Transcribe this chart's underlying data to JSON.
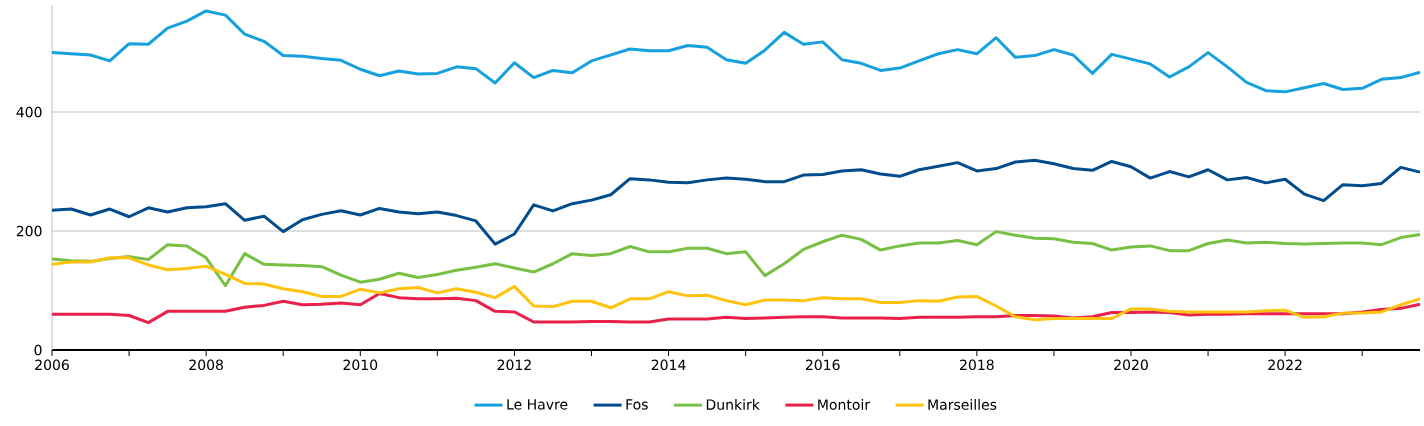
{
  "chart_data": {
    "type": "line",
    "x": [
      2006,
      2006.25,
      2006.5,
      2006.75,
      2007,
      2007.25,
      2007.5,
      2007.75,
      2008,
      2008.25,
      2008.5,
      2008.75,
      2009,
      2009.25,
      2009.5,
      2009.75,
      2010,
      2010.25,
      2010.5,
      2010.75,
      2011,
      2011.25,
      2011.5,
      2011.75,
      2012,
      2012.25,
      2012.5,
      2012.75,
      2013,
      2013.25,
      2013.5,
      2013.75,
      2014,
      2014.25,
      2014.5,
      2014.75,
      2015,
      2015.25,
      2015.5,
      2015.75,
      2016,
      2016.25,
      2016.5,
      2016.75,
      2017,
      2017.25,
      2017.5,
      2017.75,
      2018,
      2018.25,
      2018.5,
      2018.75,
      2019,
      2019.25,
      2019.5,
      2019.75,
      2020,
      2020.25,
      2020.5,
      2020.75,
      2021,
      2021.25,
      2021.5,
      2021.75,
      2022,
      2022.25,
      2022.5,
      2022.75,
      2023,
      2023.25,
      2023.5,
      2023.75
    ],
    "series": [
      {
        "name": "Le Havre",
        "color": "#16a0dc",
        "values": [
          500,
          498,
          496,
          486,
          515,
          514,
          541,
          553,
          570,
          563,
          531,
          519,
          495,
          494,
          490,
          487,
          472,
          461,
          469,
          464,
          465,
          476,
          473,
          449,
          483,
          458,
          470,
          466,
          486,
          496,
          506,
          503,
          503,
          512,
          509,
          488,
          482,
          504,
          534,
          514,
          518,
          488,
          482,
          470,
          474,
          486,
          498,
          505,
          498,
          525,
          492,
          495,
          505,
          496,
          465,
          497,
          489,
          481,
          459,
          476,
          500,
          476,
          450,
          436,
          434,
          441,
          448,
          438,
          440,
          455,
          458,
          467
        ]
      },
      {
        "name": "Fos",
        "color": "#004c8c",
        "values": [
          235,
          237,
          227,
          237,
          224,
          239,
          232,
          239,
          241,
          246,
          218,
          225,
          199,
          219,
          228,
          234,
          227,
          238,
          232,
          229,
          232,
          226,
          217,
          178,
          195,
          244,
          234,
          246,
          252,
          261,
          288,
          286,
          282,
          281,
          286,
          289,
          287,
          283,
          283,
          294,
          295,
          301,
          303,
          296,
          292,
          303,
          309,
          315,
          301,
          305,
          316,
          319,
          313,
          305,
          302,
          317,
          308,
          289,
          300,
          291,
          303,
          286,
          290,
          281,
          287,
          262,
          251,
          278,
          276,
          280,
          307,
          299
        ]
      },
      {
        "name": "Dunkirk",
        "color": "#78c043",
        "values": [
          153,
          150,
          149,
          154,
          157,
          152,
          177,
          175,
          155,
          108,
          162,
          144,
          143,
          142,
          140,
          126,
          114,
          119,
          129,
          122,
          127,
          134,
          139,
          145,
          138,
          131,
          145,
          162,
          159,
          162,
          174,
          165,
          165,
          171,
          171,
          162,
          165,
          125,
          145,
          169,
          182,
          193,
          186,
          168,
          175,
          180,
          180,
          184,
          177,
          199,
          193,
          188,
          187,
          181,
          179,
          168,
          173,
          175,
          167,
          167,
          179,
          185,
          180,
          181,
          179,
          178,
          179,
          180,
          180,
          177,
          189,
          194
        ]
      },
      {
        "name": "Montoir",
        "color": "#e8204a",
        "values": [
          60,
          60,
          60,
          60,
          58,
          46,
          65,
          65,
          65,
          65,
          72,
          75,
          82,
          76,
          77,
          79,
          76,
          95,
          88,
          86,
          86,
          87,
          83,
          65,
          64,
          47,
          47,
          47,
          48,
          48,
          47,
          47,
          52,
          52,
          52,
          55,
          53,
          54,
          55,
          56,
          56,
          54,
          54,
          54,
          53,
          55,
          55,
          55,
          56,
          56,
          58,
          58,
          57,
          54,
          56,
          63,
          63,
          64,
          63,
          59,
          60,
          60,
          61,
          61,
          61,
          61,
          61,
          61,
          64,
          68,
          70,
          77
        ]
      },
      {
        "name": "Marseilles",
        "color": "#ffc20e",
        "values": [
          144,
          148,
          148,
          155,
          155,
          143,
          135,
          137,
          141,
          127,
          112,
          111,
          103,
          98,
          90,
          90,
          102,
          96,
          103,
          105,
          96,
          103,
          97,
          88,
          107,
          74,
          73,
          82,
          82,
          71,
          86,
          86,
          98,
          91,
          92,
          83,
          76,
          84,
          84,
          83,
          88,
          86,
          86,
          80,
          80,
          83,
          82,
          89,
          90,
          74,
          56,
          51,
          53,
          53,
          53,
          53,
          69,
          69,
          65,
          64,
          64,
          64,
          64,
          66,
          67,
          55,
          56,
          62,
          62,
          64,
          76,
          86
        ]
      }
    ],
    "xlim": [
      2006,
      2023.75
    ],
    "xticks": [
      2006,
      {
        "value": 2007,
        "label": null
      },
      2008,
      {
        "value": 2009,
        "label": null
      },
      2010,
      {
        "value": 2011,
        "label": null
      },
      2012,
      {
        "value": 2013,
        "label": null
      },
      2014,
      {
        "value": 2015,
        "label": null
      },
      2016,
      {
        "value": 2017,
        "label": null
      },
      2018,
      {
        "value": 2019,
        "label": null
      },
      2020,
      {
        "value": 2021,
        "label": null
      },
      2022,
      {
        "value": 2023,
        "label": null
      }
    ],
    "ylim": [
      0,
      580
    ],
    "yticks": [
      0,
      200,
      400
    ],
    "grid": "y",
    "legend": "bottom",
    "marker": "none",
    "line_style": "solid"
  }
}
